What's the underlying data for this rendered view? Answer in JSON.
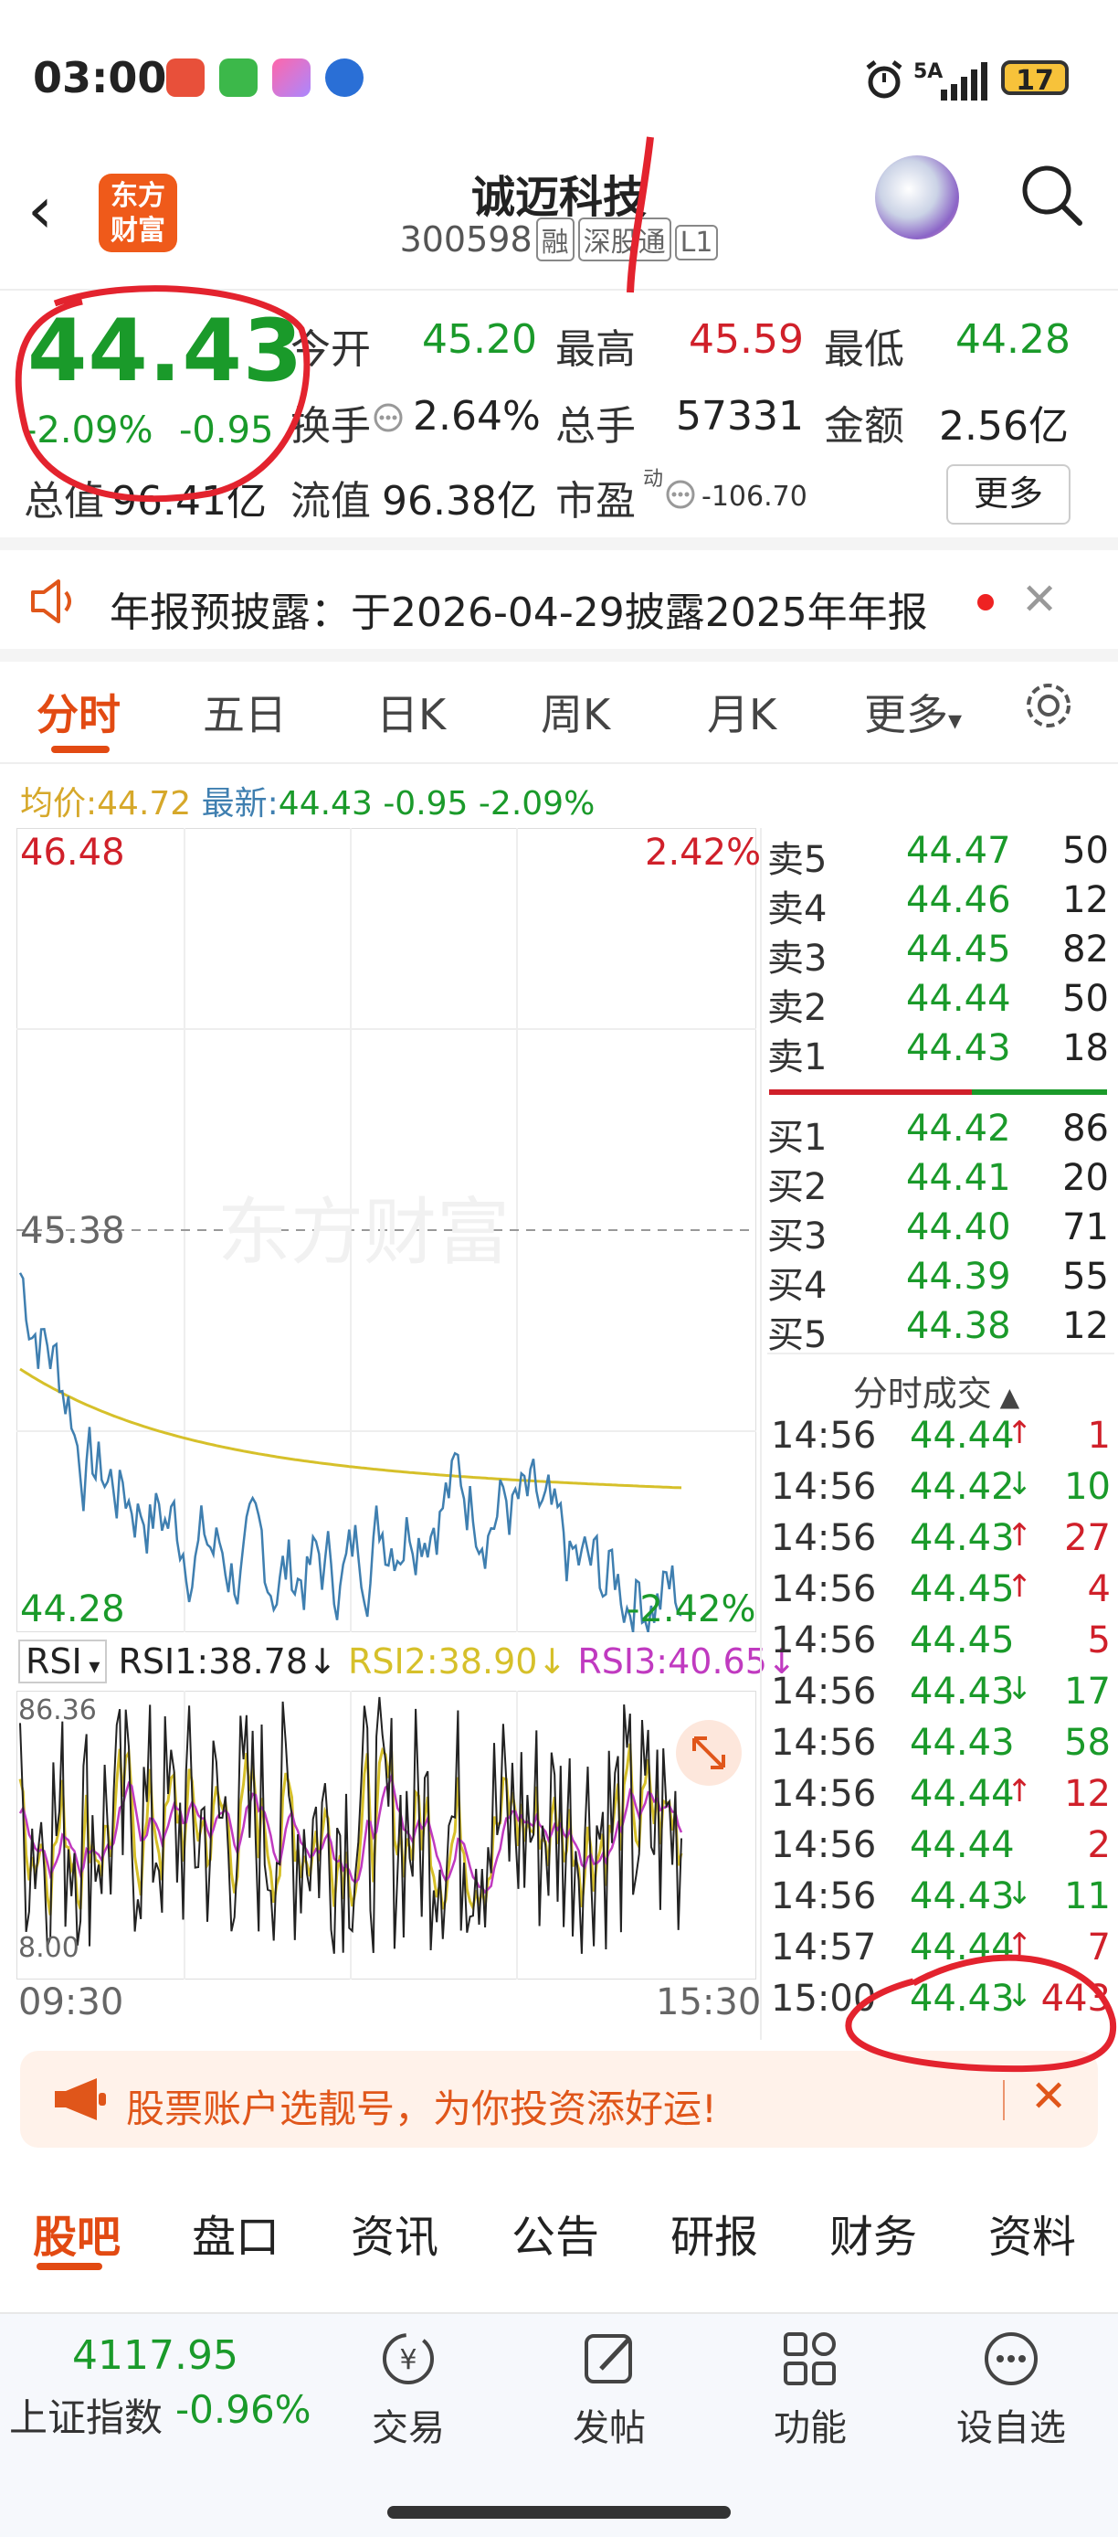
{
  "status_bar": {
    "time": "03:00",
    "network": "5A",
    "battery": "17"
  },
  "header": {
    "stock_name": "诚迈科技",
    "code": "300598",
    "tags": [
      "融",
      "深股通",
      "L1"
    ],
    "logo_text_1": "东方",
    "logo_text_2": "财富"
  },
  "price": {
    "last": "44.43",
    "pct": "-2.09%",
    "change": "-0.95"
  },
  "quote": {
    "open_label": "今开",
    "open": "45.20",
    "high_label": "最高",
    "high": "45.59",
    "low_label": "最低",
    "low": "44.28",
    "turnover_label": "换手",
    "turnover": "2.64%",
    "volume_label": "总手",
    "volume": "57331",
    "amount_label": "金额",
    "amount": "2.56亿",
    "mcap_label": "总值",
    "mcap": "96.41亿",
    "float_label": "流值",
    "float": "96.38亿",
    "pe_label": "市盈",
    "pe_sup": "动",
    "pe": "-106.70",
    "more": "更多"
  },
  "announcement": {
    "text": "年报预披露：于2026-04-29披露2025年年报"
  },
  "tabs": [
    "分时",
    "五日",
    "日K",
    "周K",
    "月K",
    "更多"
  ],
  "avg_line": {
    "avg_label": "均价:",
    "avg": "44.72",
    "latest_label": "最新:",
    "latest": "44.43",
    "chg": "-0.95",
    "pct": "-2.09%"
  },
  "chart_labels": {
    "top_price": "46.48",
    "top_pct": "2.42%",
    "mid_price": "45.38",
    "bottom_price": "44.28",
    "bottom_pct": "-2.42%",
    "watermark": "东方财富",
    "time_start": "09:30",
    "time_end": "15:30"
  },
  "rsi": {
    "label": "RSI",
    "rsi1": "RSI1:38.78",
    "rsi2": "RSI2:38.90",
    "rsi3": "RSI3:40.65",
    "top": "86.36",
    "bottom": "8.00"
  },
  "order_book": {
    "asks": [
      {
        "label": "卖5",
        "price": "44.47",
        "vol": "50"
      },
      {
        "label": "卖4",
        "price": "44.46",
        "vol": "12"
      },
      {
        "label": "卖3",
        "price": "44.45",
        "vol": "82"
      },
      {
        "label": "卖2",
        "price": "44.44",
        "vol": "50"
      },
      {
        "label": "卖1",
        "price": "44.43",
        "vol": "18"
      }
    ],
    "bids": [
      {
        "label": "买1",
        "price": "44.42",
        "vol": "86"
      },
      {
        "label": "买2",
        "price": "44.41",
        "vol": "20"
      },
      {
        "label": "买3",
        "price": "44.40",
        "vol": "71"
      },
      {
        "label": "买4",
        "price": "44.39",
        "vol": "55"
      },
      {
        "label": "买5",
        "price": "44.38",
        "vol": "12"
      }
    ]
  },
  "trades": {
    "title": "分时成交",
    "rows": [
      {
        "time": "14:56",
        "price": "44.44",
        "arrow": "↑",
        "vol": "1",
        "color": "red"
      },
      {
        "time": "14:56",
        "price": "44.42",
        "arrow": "↓",
        "vol": "10",
        "color": "green"
      },
      {
        "time": "14:56",
        "price": "44.43",
        "arrow": "↑",
        "vol": "27",
        "color": "red"
      },
      {
        "time": "14:56",
        "price": "44.45",
        "arrow": "↑",
        "vol": "4",
        "color": "red"
      },
      {
        "time": "14:56",
        "price": "44.45",
        "arrow": "",
        "vol": "5",
        "color": "red"
      },
      {
        "time": "14:56",
        "price": "44.43",
        "arrow": "↓",
        "vol": "17",
        "color": "green"
      },
      {
        "time": "14:56",
        "price": "44.43",
        "arrow": "",
        "vol": "58",
        "color": "green"
      },
      {
        "time": "14:56",
        "price": "44.44",
        "arrow": "↑",
        "vol": "12",
        "color": "red"
      },
      {
        "time": "14:56",
        "price": "44.44",
        "arrow": "",
        "vol": "2",
        "color": "red"
      },
      {
        "time": "14:56",
        "price": "44.43",
        "arrow": "↓",
        "vol": "11",
        "color": "green"
      },
      {
        "time": "14:57",
        "price": "44.44",
        "arrow": "↑",
        "vol": "7",
        "color": "red"
      },
      {
        "time": "15:00",
        "price": "44.43",
        "arrow": "↓",
        "vol": "443",
        "color": "red"
      }
    ]
  },
  "promo": {
    "text": "股票账户选靓号，为你投资添好运!"
  },
  "bottom_tabs": [
    "股吧",
    "盘口",
    "资讯",
    "公告",
    "研报",
    "财务",
    "资料"
  ],
  "index": {
    "value": "4117.95",
    "name": "上证指数",
    "pct": "-0.96%"
  },
  "nav": [
    "交易",
    "发帖",
    "功能",
    "设自选"
  ],
  "colors": {
    "up": "#d0202a",
    "down": "#1a9a2a",
    "accent": "#e24a12",
    "price_line": "#3f7fb0",
    "avg_line": "#d6c02a"
  }
}
